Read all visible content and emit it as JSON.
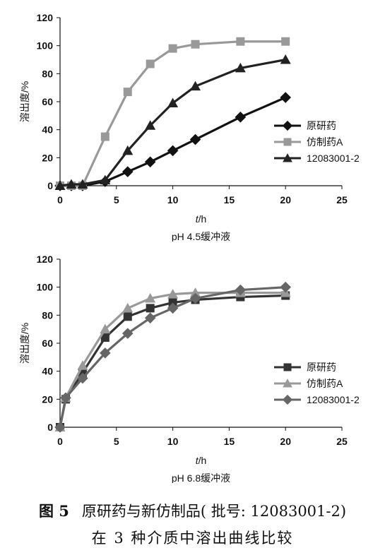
{
  "chart_data": [
    {
      "type": "line",
      "title": "pH 4.5缓冲液",
      "xlabel_italic": "t",
      "xlabel_unit": "/h",
      "ylabel": "溶出度/%",
      "xlim": [
        0,
        25
      ],
      "ylim": [
        0,
        120
      ],
      "xticks": [
        0,
        5,
        10,
        15,
        20,
        25
      ],
      "yticks": [
        0,
        20,
        40,
        60,
        80,
        100,
        120
      ],
      "grid": false,
      "legend_position": "right",
      "series": [
        {
          "name": "原研药",
          "marker": "diamond",
          "color": "#111111",
          "x": [
            0,
            1,
            2,
            4,
            6,
            8,
            10,
            12,
            16,
            20
          ],
          "y": [
            0,
            0,
            0,
            3,
            10,
            17,
            25,
            33,
            49,
            63
          ]
        },
        {
          "name": "仿制药A",
          "marker": "square",
          "color": "#999999",
          "x": [
            0,
            1,
            2,
            4,
            6,
            8,
            10,
            12,
            16,
            20
          ],
          "y": [
            0,
            0,
            0,
            35,
            67,
            87,
            98,
            101,
            103,
            103
          ]
        },
        {
          "name": "12083001-2",
          "marker": "triangle",
          "color": "#222222",
          "x": [
            0,
            1,
            2,
            4,
            6,
            8,
            10,
            12,
            16,
            20
          ],
          "y": [
            0,
            1,
            1,
            4,
            25,
            43,
            59,
            71,
            84,
            90
          ]
        }
      ]
    },
    {
      "type": "line",
      "title": "pH 6.8缓冲液",
      "xlabel_italic": "t",
      "xlabel_unit": "/h",
      "ylabel": "溶出度/%",
      "xlim": [
        0,
        25
      ],
      "ylim": [
        0,
        120
      ],
      "xticks": [
        0,
        5,
        10,
        15,
        20,
        25
      ],
      "yticks": [
        0,
        20,
        40,
        60,
        80,
        100,
        120
      ],
      "grid": false,
      "legend_position": "right",
      "series": [
        {
          "name": "原研药",
          "marker": "square",
          "color": "#333333",
          "x": [
            0,
            0.5,
            2,
            4,
            6,
            8,
            10,
            12,
            16,
            20
          ],
          "y": [
            0,
            20,
            39,
            64,
            79,
            85,
            89,
            91,
            93,
            94
          ]
        },
        {
          "name": "仿制药A",
          "marker": "triangle",
          "color": "#999999",
          "x": [
            0,
            0.5,
            2,
            4,
            6,
            8,
            10,
            12,
            16,
            20
          ],
          "y": [
            0,
            21,
            44,
            70,
            85,
            92,
            95,
            96,
            96,
            96
          ]
        },
        {
          "name": "12083001-2",
          "marker": "diamond",
          "color": "#666666",
          "x": [
            0,
            0.5,
            2,
            4,
            6,
            8,
            10,
            12,
            16,
            20
          ],
          "y": [
            0,
            21,
            35,
            53,
            67,
            78,
            85,
            92,
            98,
            100
          ]
        }
      ]
    }
  ],
  "caption": {
    "fig_label": "图 5",
    "line1": "原研药与新仿制品( 批号: 12083001-2)",
    "line2": "在 3 种介质中溶出曲线比较"
  }
}
